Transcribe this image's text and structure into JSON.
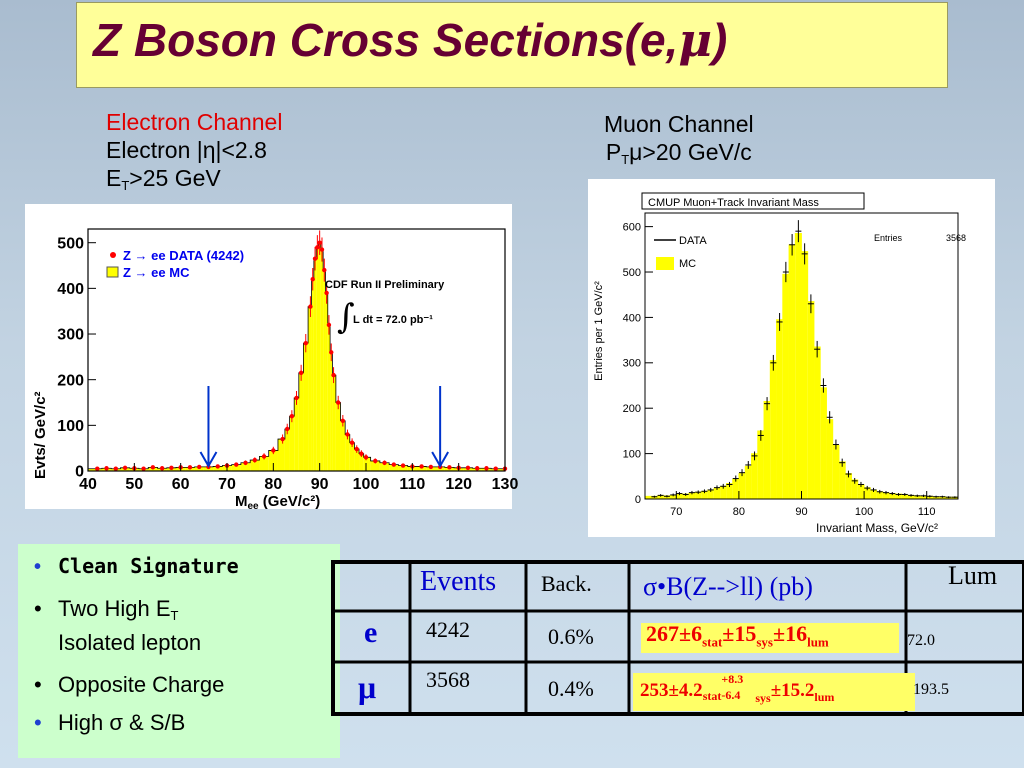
{
  "title": "Z Boson Cross Sections(e,μ)",
  "title_parts": {
    "main": "Z Boson Cross Sections(e,",
    "mu": "μ",
    "close": ")"
  },
  "electron_caption": {
    "line1": "Electron Channel",
    "line2": "Electron |η|<2.8",
    "line3_pre": "E",
    "line3_sub": "T",
    "line3_post": ">25 GeV"
  },
  "muon_caption": {
    "line1": "Muon Channel",
    "line2_pre": "P",
    "line2_sub": "T",
    "line2_post": "μ>20 GeV/c"
  },
  "electron_plot": {
    "ylabel": "Evts/ GeV/c²",
    "xlabel_pre": "M",
    "xlabel_sub": "ee",
    "xlabel_post": " (GeV/c²)",
    "legend_data": "Z → ee DATA (4242)",
    "legend_mc": "Z → ee  MC",
    "annotation1": "CDF Run II Preliminary",
    "annotation2": "L dt = 72.0 pb⁻¹",
    "integral_symbol": "∫",
    "x_ticks": [
      "40",
      "50",
      "60",
      "70",
      "80",
      "90",
      "100",
      "110",
      "120",
      "130"
    ],
    "y_ticks": [
      "0",
      "100",
      "200",
      "300",
      "400",
      "500"
    ],
    "colors": {
      "data": "#ff0000",
      "mc": "#ffff00",
      "legend_text": "#0000ee",
      "arrow": "#0033cc"
    },
    "arrow_x": [
      66,
      116
    ]
  },
  "muon_plot": {
    "title": "CMUP Muon+Track Invariant Mass",
    "ylabel": "Entries per 1 GeV/c²",
    "xlabel": "Invariant Mass, GeV/c²",
    "legend_data": "DATA",
    "legend_mc": "MC",
    "entries_label": "Entries",
    "entries_value": "3568",
    "x_ticks": [
      "70",
      "80",
      "90",
      "100",
      "110"
    ],
    "y_ticks": [
      "0",
      "100",
      "200",
      "300",
      "400",
      "500",
      "600"
    ],
    "colors": {
      "data": "#000000",
      "mc": "#ffff00"
    }
  },
  "bullets": [
    {
      "text": "Clean Signature"
    },
    {
      "text": "Two High E",
      "sub": "T"
    },
    {
      "text": "Isolated lepton"
    },
    {
      "text": "Opposite Charge"
    },
    {
      "text": "High σ  & S/B"
    }
  ],
  "bullet_symbol": "•",
  "table": {
    "headers": {
      "events": "Events",
      "back": "Back.",
      "sigma": "σ•B(Z-->ll) (pb)",
      "lum": "Lum"
    },
    "rows": [
      {
        "label": "e",
        "events": "4242",
        "back": "0.6%",
        "sigma": {
          "v": "267±6",
          "stat": "stat",
          "sys_pre": "±15",
          "sys": "sys",
          "lum_pre": "±16",
          "lum": "lum"
        },
        "lum": "72.0"
      },
      {
        "label": "μ",
        "events": "3568",
        "back": "0.4%",
        "sigma": {
          "v": "253±4.2",
          "stat": "stat",
          "up": "+8.3",
          "down": "-6.4",
          "sys": "sys",
          "lum_pre": "±15.2",
          "lum": "lum"
        },
        "lum": "193.5"
      }
    ],
    "colors": {
      "highlight": "#ffff66",
      "row_label": "#0000cc",
      "sigma_value": "#ee0000",
      "header": "#0000cc"
    }
  },
  "chart_data": [
    {
      "type": "bar",
      "title": "",
      "xlabel": "Mee (GeV/c²)",
      "ylabel": "Evts/ GeV/c²",
      "xlim": [
        40,
        130
      ],
      "ylim": [
        0,
        530
      ],
      "grid": false,
      "legend": "top-left",
      "series": [
        {
          "name": "Z → ee DATA (4242)",
          "kind": "points",
          "x": [
            42,
            44,
            46,
            48,
            50,
            52,
            54,
            56,
            58,
            60,
            62,
            64,
            66,
            68,
            70,
            72,
            74,
            76,
            78,
            80,
            82,
            83,
            84,
            85,
            86,
            87,
            88,
            88.5,
            89,
            89.5,
            90,
            90.5,
            91,
            91.5,
            92,
            92.5,
            93,
            94,
            95,
            96,
            97,
            98,
            99,
            100,
            102,
            104,
            106,
            108,
            110,
            112,
            114,
            116,
            118,
            120,
            122,
            124,
            126,
            128,
            130
          ],
          "y": [
            5,
            6,
            5,
            7,
            6,
            5,
            8,
            6,
            7,
            8,
            8,
            9,
            9,
            10,
            12,
            14,
            18,
            24,
            32,
            45,
            70,
            92,
            120,
            160,
            215,
            280,
            360,
            420,
            465,
            490,
            500,
            485,
            440,
            390,
            320,
            260,
            210,
            150,
            110,
            80,
            62,
            48,
            38,
            30,
            22,
            18,
            14,
            12,
            10,
            10,
            9,
            9,
            8,
            7,
            7,
            6,
            6,
            5,
            5
          ]
        },
        {
          "name": "Z → ee  MC",
          "kind": "histogram",
          "x": [
            42,
            44,
            46,
            48,
            50,
            52,
            54,
            56,
            58,
            60,
            62,
            64,
            66,
            68,
            70,
            72,
            74,
            76,
            78,
            80,
            82,
            83,
            84,
            85,
            86,
            87,
            88,
            88.5,
            89,
            89.5,
            90,
            90.5,
            91,
            91.5,
            92,
            92.5,
            93,
            94,
            95,
            96,
            97,
            98,
            99,
            100,
            102,
            104,
            106,
            108,
            110,
            112,
            114,
            116,
            118,
            120,
            122,
            124,
            126,
            128,
            130
          ],
          "y": [
            5,
            6,
            5,
            7,
            6,
            5,
            8,
            6,
            7,
            8,
            8,
            9,
            9,
            10,
            12,
            14,
            18,
            24,
            32,
            45,
            70,
            92,
            120,
            160,
            215,
            280,
            360,
            420,
            465,
            490,
            500,
            485,
            440,
            390,
            320,
            260,
            210,
            150,
            110,
            80,
            62,
            48,
            38,
            30,
            22,
            18,
            14,
            12,
            10,
            10,
            9,
            9,
            8,
            7,
            7,
            6,
            6,
            5,
            5
          ]
        }
      ]
    },
    {
      "type": "bar",
      "title": "CMUP Muon+Track Invariant Mass",
      "xlabel": "Invariant Mass, GeV/c²",
      "ylabel": "Entries per 1 GeV/c²",
      "xlim": [
        65,
        115
      ],
      "ylim": [
        0,
        630
      ],
      "grid": false,
      "legend": "top-left",
      "series": [
        {
          "name": "DATA",
          "kind": "points",
          "x": [
            66.5,
            67.5,
            68.5,
            69.5,
            70.5,
            71.5,
            72.5,
            73.5,
            74.5,
            75.5,
            76.5,
            77.5,
            78.5,
            79.5,
            80.5,
            81.5,
            82.5,
            83.5,
            84.5,
            85.5,
            86.5,
            87.5,
            88.5,
            89.5,
            90.5,
            91.5,
            92.5,
            93.5,
            94.5,
            95.5,
            96.5,
            97.5,
            98.5,
            99.5,
            100.5,
            101.5,
            102.5,
            103.5,
            104.5,
            105.5,
            106.5,
            107.5,
            108.5,
            109.5,
            110.5,
            111.5,
            112.5,
            113.5,
            114.5
          ],
          "y": [
            5,
            8,
            6,
            9,
            12,
            10,
            14,
            15,
            17,
            20,
            25,
            28,
            32,
            45,
            58,
            75,
            95,
            140,
            210,
            300,
            390,
            500,
            560,
            590,
            540,
            430,
            330,
            250,
            180,
            120,
            80,
            55,
            40,
            32,
            24,
            20,
            16,
            14,
            12,
            10,
            10,
            8,
            7,
            7,
            6,
            5,
            5,
            4,
            4
          ]
        },
        {
          "name": "MC",
          "kind": "histogram",
          "x": [
            66.5,
            67.5,
            68.5,
            69.5,
            70.5,
            71.5,
            72.5,
            73.5,
            74.5,
            75.5,
            76.5,
            77.5,
            78.5,
            79.5,
            80.5,
            81.5,
            82.5,
            83.5,
            84.5,
            85.5,
            86.5,
            87.5,
            88.5,
            89.5,
            90.5,
            91.5,
            92.5,
            93.5,
            94.5,
            95.5,
            96.5,
            97.5,
            98.5,
            99.5,
            100.5,
            101.5,
            102.5,
            103.5,
            104.5,
            105.5,
            106.5,
            107.5,
            108.5,
            109.5,
            110.5,
            111.5,
            112.5,
            113.5,
            114.5
          ],
          "y": [
            6,
            7,
            7,
            8,
            10,
            11,
            13,
            15,
            17,
            20,
            24,
            28,
            34,
            44,
            56,
            72,
            100,
            150,
            215,
            305,
            395,
            495,
            560,
            585,
            545,
            435,
            335,
            245,
            175,
            118,
            82,
            56,
            42,
            32,
            25,
            20,
            16,
            14,
            12,
            11,
            9,
            8,
            7,
            6,
            6,
            5,
            5,
            4,
            4
          ]
        }
      ]
    }
  ]
}
